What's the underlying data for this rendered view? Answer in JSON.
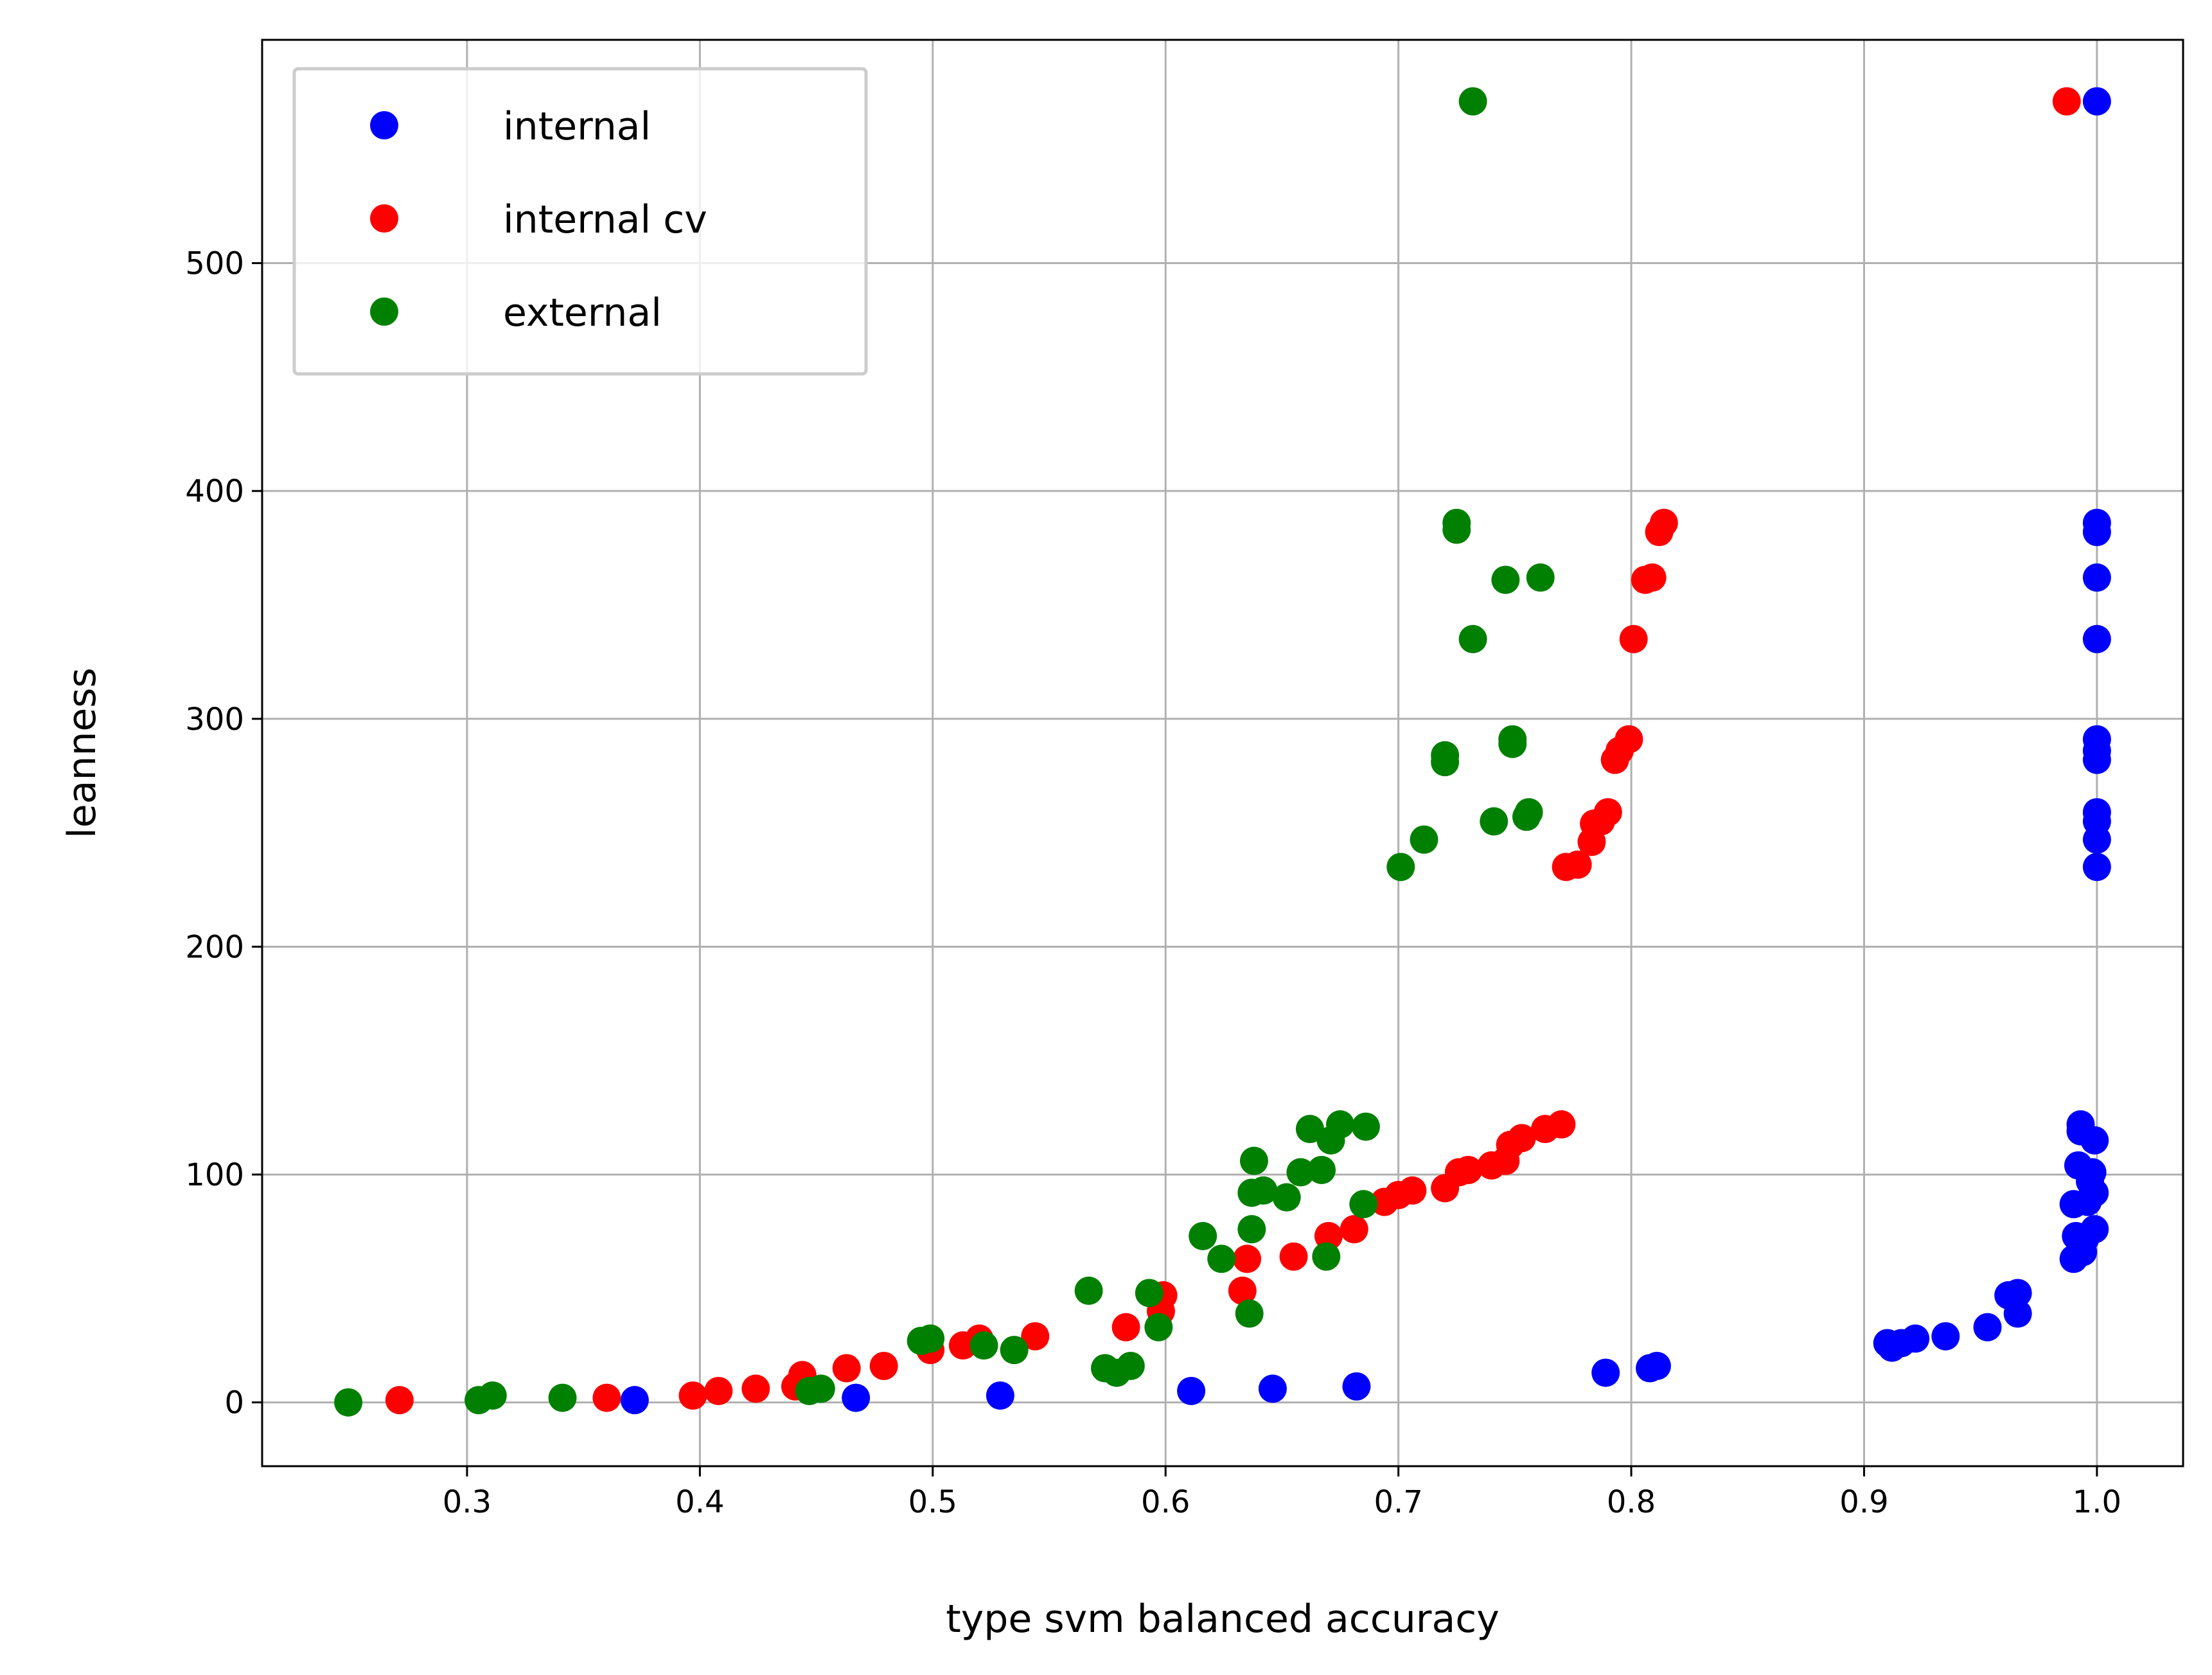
{
  "chart_data": {
    "type": "scatter",
    "title": "",
    "xlabel": "type svm balanced accuracy",
    "ylabel": "leanness",
    "xlim": [
      0.212,
      1.037
    ],
    "ylim": [
      -28,
      598
    ],
    "xticks": [
      0.3,
      0.4,
      0.5,
      0.6,
      0.7,
      0.8,
      0.9,
      1.0
    ],
    "xtick_labels": [
      "0.3",
      "0.4",
      "0.5",
      "0.6",
      "0.7",
      "0.8",
      "0.9",
      "1.0"
    ],
    "yticks": [
      0,
      100,
      200,
      300,
      400,
      500
    ],
    "ytick_labels": [
      "0",
      "100",
      "200",
      "300",
      "400",
      "500"
    ],
    "grid": true,
    "legend_position": "top-left",
    "series": [
      {
        "name": "internal",
        "color": "#0000ff",
        "points": [
          [
            0.372,
            1
          ],
          [
            0.467,
            2
          ],
          [
            0.529,
            3
          ],
          [
            0.611,
            5
          ],
          [
            0.646,
            6
          ],
          [
            0.682,
            7
          ],
          [
            0.789,
            13
          ],
          [
            0.808,
            15
          ],
          [
            0.811,
            16
          ],
          [
            0.91,
            26
          ],
          [
            0.912,
            24
          ],
          [
            0.916,
            26
          ],
          [
            0.922,
            28
          ],
          [
            0.935,
            29
          ],
          [
            0.953,
            33
          ],
          [
            0.962,
            47
          ],
          [
            0.966,
            48
          ],
          [
            0.966,
            39
          ],
          [
            0.99,
            63
          ],
          [
            0.991,
            73
          ],
          [
            0.99,
            87
          ],
          [
            0.992,
            104
          ],
          [
            0.993,
            122
          ],
          [
            0.993,
            119
          ],
          [
            0.994,
            66
          ],
          [
            0.995,
            72
          ],
          [
            0.996,
            88
          ],
          [
            0.997,
            97
          ],
          [
            0.998,
            101
          ],
          [
            0.999,
            115
          ],
          [
            0.999,
            92
          ],
          [
            0.999,
            76
          ],
          [
            1.0,
            235
          ],
          [
            1.0,
            247
          ],
          [
            1.0,
            255
          ],
          [
            1.0,
            259
          ],
          [
            1.0,
            282
          ],
          [
            1.0,
            286
          ],
          [
            1.0,
            291
          ],
          [
            1.0,
            335
          ],
          [
            1.0,
            362
          ],
          [
            1.0,
            382
          ],
          [
            1.0,
            386
          ],
          [
            1.0,
            571
          ]
        ]
      },
      {
        "name": "internal cv",
        "color": "#ff0000",
        "points": [
          [
            0.271,
            1
          ],
          [
            0.36,
            2
          ],
          [
            0.397,
            3
          ],
          [
            0.408,
            5
          ],
          [
            0.424,
            6
          ],
          [
            0.441,
            7
          ],
          [
            0.444,
            12
          ],
          [
            0.463,
            15
          ],
          [
            0.479,
            16
          ],
          [
            0.499,
            23
          ],
          [
            0.513,
            25
          ],
          [
            0.52,
            28
          ],
          [
            0.544,
            29
          ],
          [
            0.583,
            33
          ],
          [
            0.598,
            40
          ],
          [
            0.599,
            47
          ],
          [
            0.633,
            49
          ],
          [
            0.635,
            63
          ],
          [
            0.655,
            64
          ],
          [
            0.67,
            73
          ],
          [
            0.681,
            76
          ],
          [
            0.694,
            88
          ],
          [
            0.7,
            91
          ],
          [
            0.706,
            93
          ],
          [
            0.72,
            94
          ],
          [
            0.726,
            101
          ],
          [
            0.73,
            102
          ],
          [
            0.74,
            104
          ],
          [
            0.746,
            106
          ],
          [
            0.748,
            113
          ],
          [
            0.753,
            116
          ],
          [
            0.763,
            120
          ],
          [
            0.77,
            122
          ],
          [
            0.772,
            235
          ],
          [
            0.777,
            236
          ],
          [
            0.783,
            246
          ],
          [
            0.784,
            254
          ],
          [
            0.787,
            255
          ],
          [
            0.79,
            259
          ],
          [
            0.793,
            282
          ],
          [
            0.795,
            286
          ],
          [
            0.799,
            291
          ],
          [
            0.801,
            335
          ],
          [
            0.806,
            361
          ],
          [
            0.809,
            362
          ],
          [
            0.812,
            382
          ],
          [
            0.814,
            386
          ],
          [
            0.987,
            571
          ]
        ]
      },
      {
        "name": "external",
        "color": "#008000",
        "points": [
          [
            0.249,
            0
          ],
          [
            0.305,
            1
          ],
          [
            0.311,
            3
          ],
          [
            0.341,
            2
          ],
          [
            0.447,
            5
          ],
          [
            0.452,
            6
          ],
          [
            0.495,
            27
          ],
          [
            0.499,
            28
          ],
          [
            0.522,
            25
          ],
          [
            0.535,
            23
          ],
          [
            0.567,
            49
          ],
          [
            0.574,
            15
          ],
          [
            0.579,
            13
          ],
          [
            0.585,
            16
          ],
          [
            0.593,
            48
          ],
          [
            0.597,
            33
          ],
          [
            0.616,
            73
          ],
          [
            0.624,
            63
          ],
          [
            0.636,
            39
          ],
          [
            0.637,
            76
          ],
          [
            0.637,
            92
          ],
          [
            0.638,
            106
          ],
          [
            0.642,
            93
          ],
          [
            0.652,
            90
          ],
          [
            0.658,
            101
          ],
          [
            0.662,
            120
          ],
          [
            0.667,
            102
          ],
          [
            0.669,
            64
          ],
          [
            0.671,
            115
          ],
          [
            0.675,
            122
          ],
          [
            0.685,
            87
          ],
          [
            0.686,
            121
          ],
          [
            0.701,
            235
          ],
          [
            0.711,
            247
          ],
          [
            0.72,
            281
          ],
          [
            0.72,
            284
          ],
          [
            0.725,
            383
          ],
          [
            0.725,
            386
          ],
          [
            0.732,
            335
          ],
          [
            0.732,
            571
          ],
          [
            0.741,
            255
          ],
          [
            0.746,
            361
          ],
          [
            0.749,
            289
          ],
          [
            0.749,
            291
          ],
          [
            0.755,
            257
          ],
          [
            0.756,
            259
          ],
          [
            0.761,
            362
          ]
        ]
      }
    ]
  }
}
